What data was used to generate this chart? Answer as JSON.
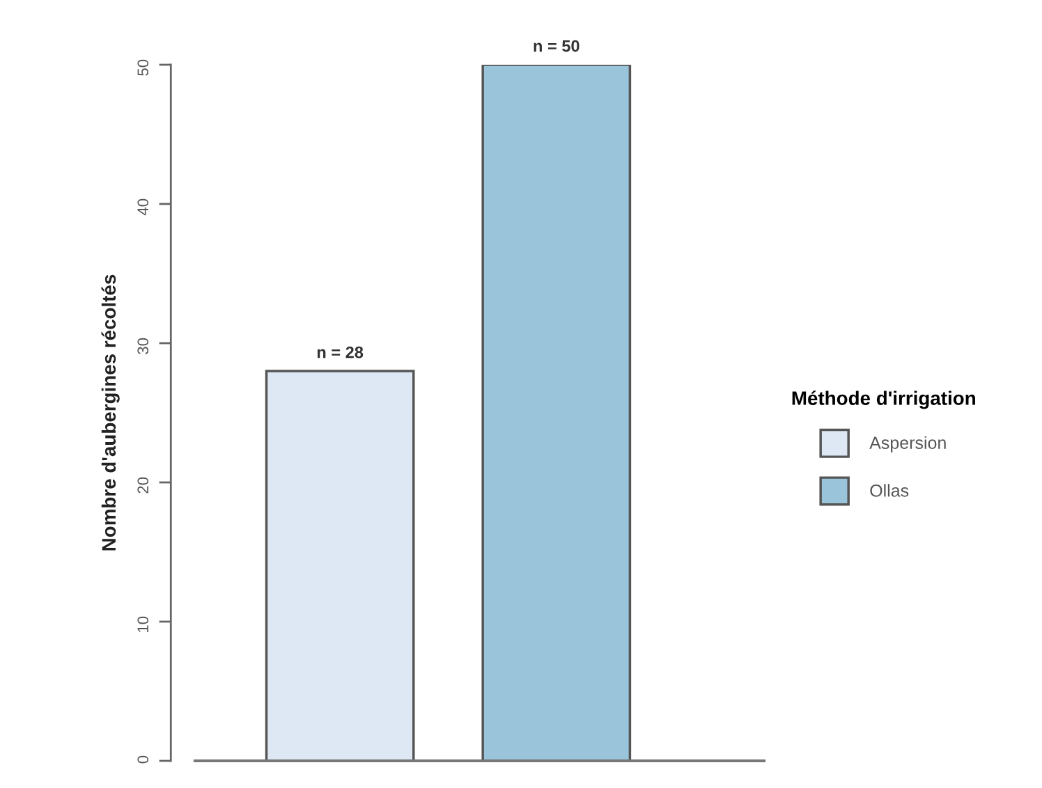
{
  "chart_data": {
    "type": "bar",
    "ylabel": "Nombre d'aubergines récoltés",
    "legend_title": "Méthode d'irrigation",
    "categories": [
      null,
      null
    ],
    "series": [
      {
        "name": "Aspersion",
        "color": "#dde8f4",
        "values": [
          28,
          null
        ],
        "value_labels": [
          "n = 28",
          null
        ]
      },
      {
        "name": "Ollas",
        "color": "#9ac4da",
        "values": [
          null,
          50
        ],
        "value_labels": [
          null,
          "n = 50"
        ]
      }
    ],
    "ylim": [
      0,
      50
    ],
    "yticks": [
      0,
      10,
      20,
      30,
      40,
      50
    ],
    "grid": false,
    "legend": "right"
  }
}
